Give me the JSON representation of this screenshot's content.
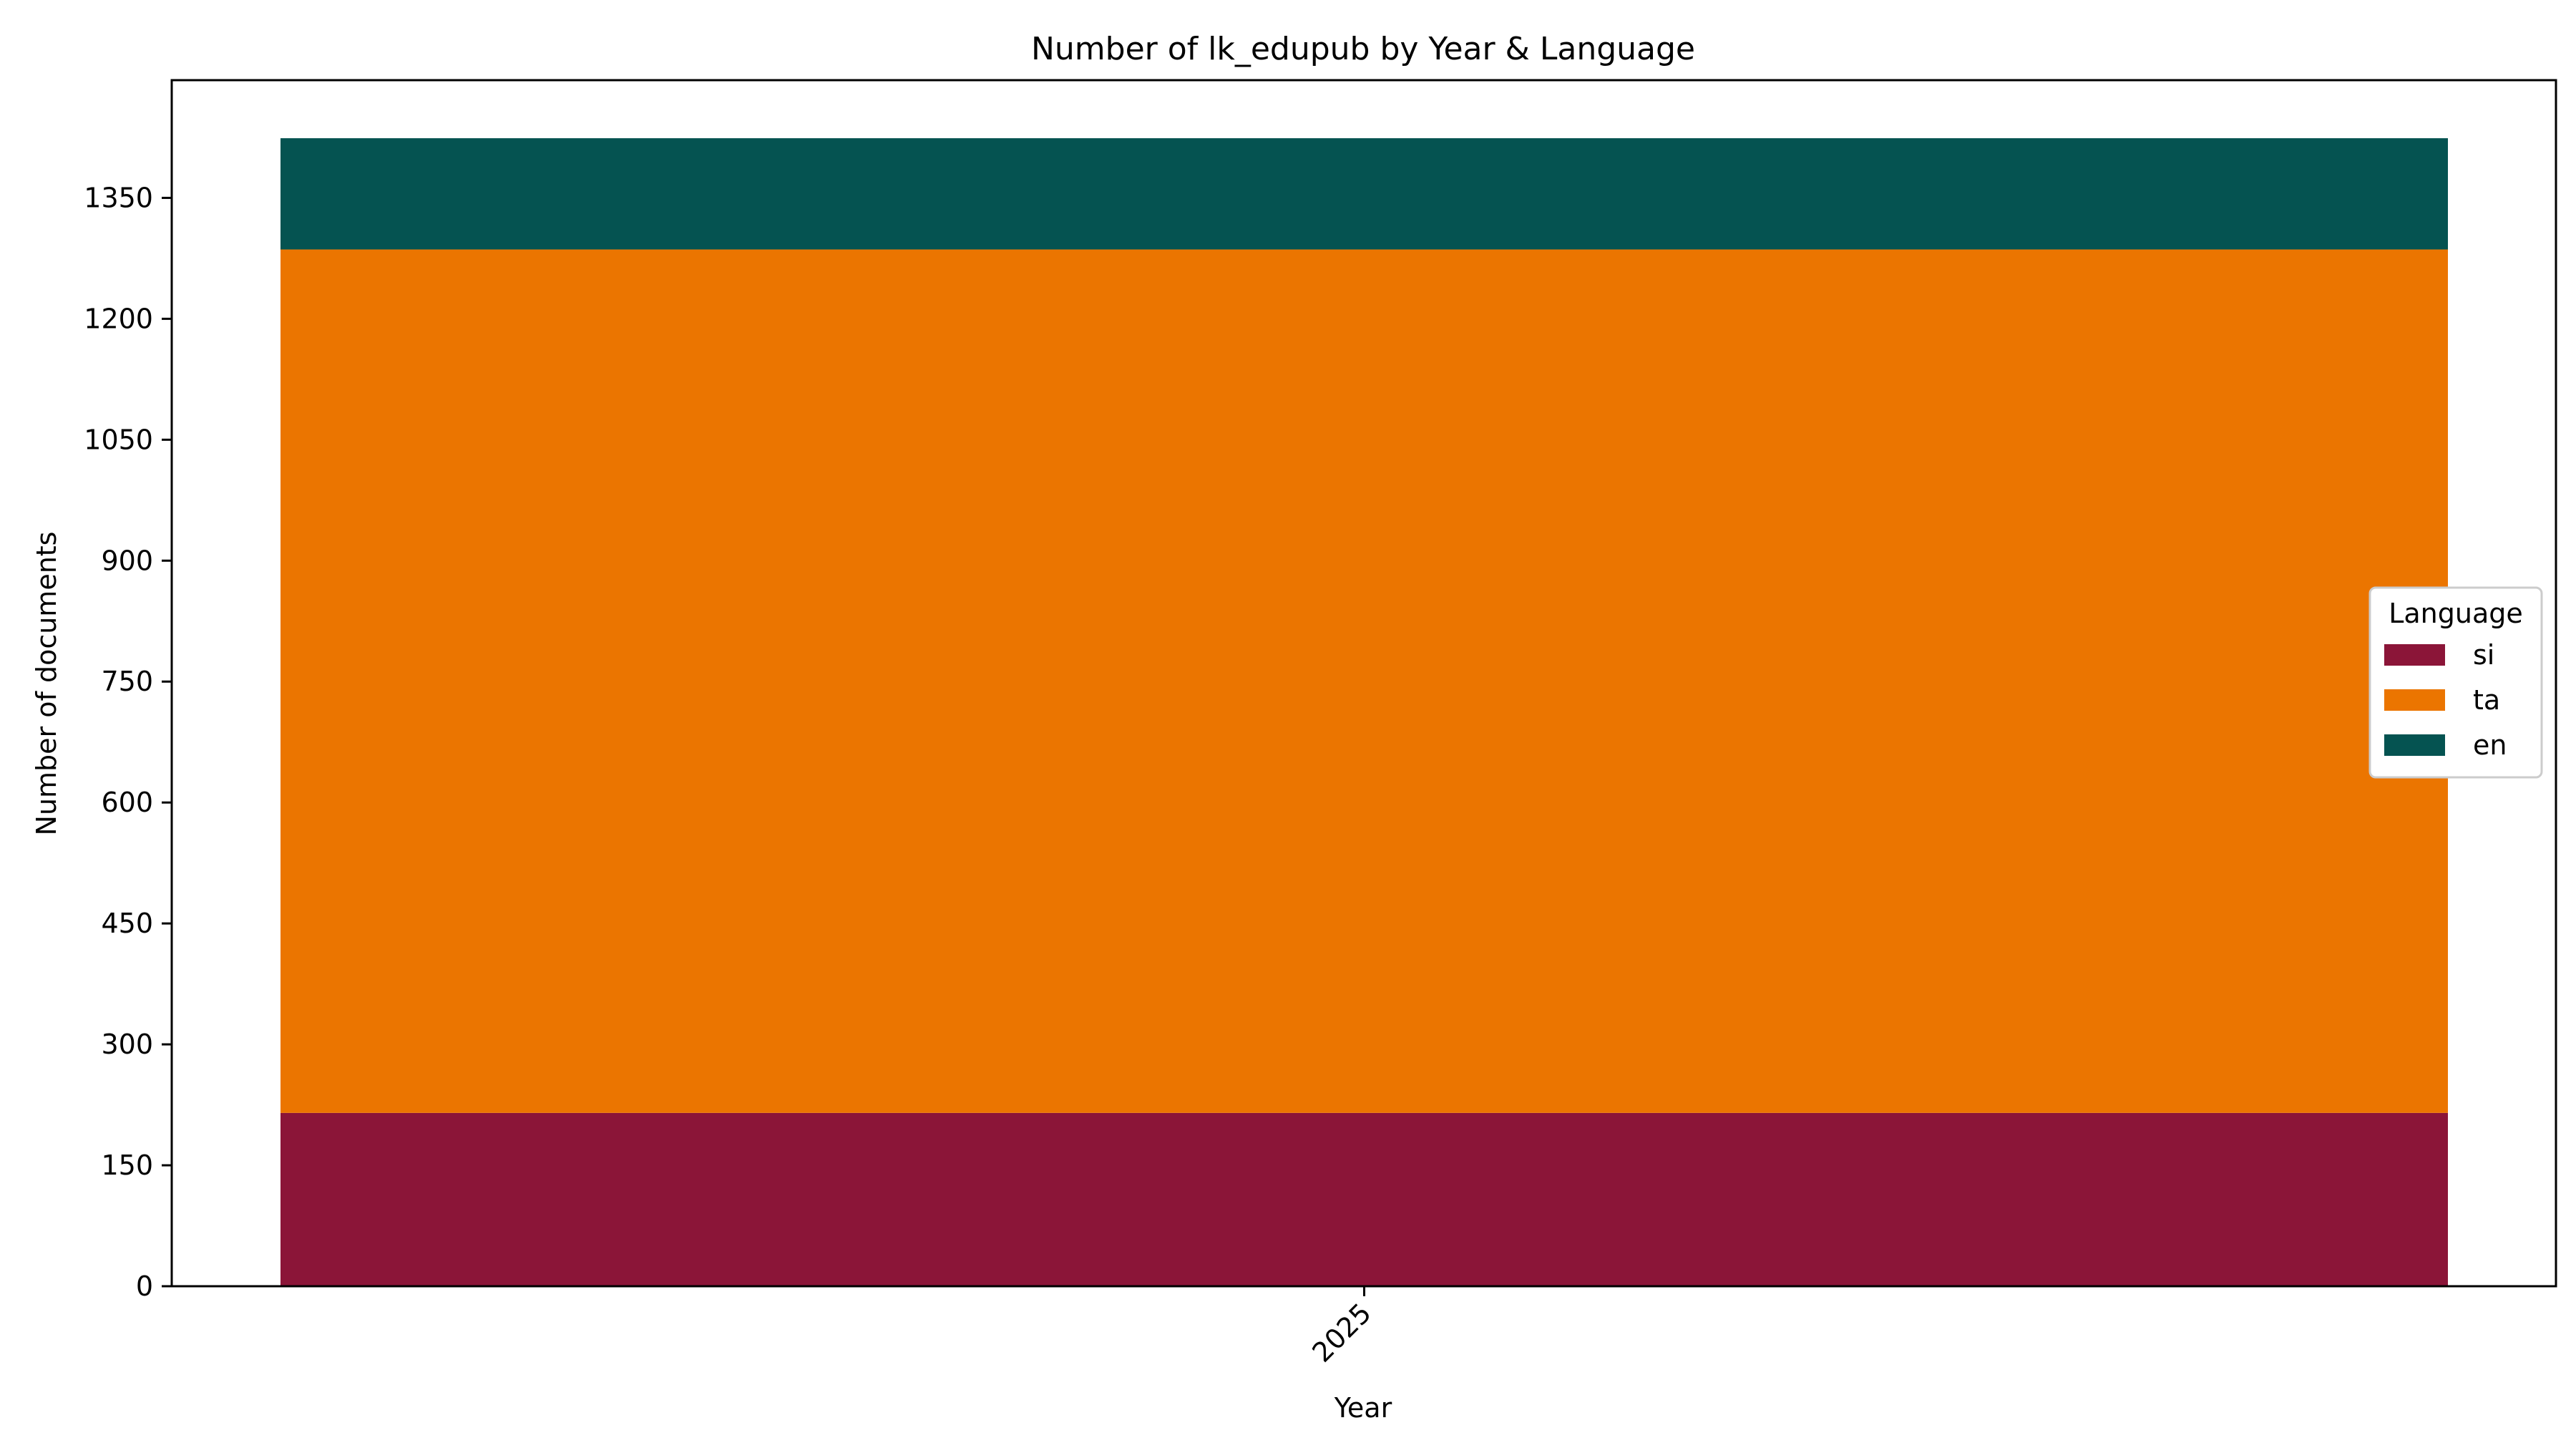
{
  "chart_data": {
    "type": "bar",
    "stacked": true,
    "title": "Number of lk_edupub by Year & Language",
    "xlabel": "Year",
    "ylabel": "Number of documents",
    "categories": [
      "2025"
    ],
    "series": [
      {
        "name": "si",
        "values": [
          215
        ],
        "color": "#8b1538"
      },
      {
        "name": "ta",
        "values": [
          1071
        ],
        "color": "#eb7500"
      },
      {
        "name": "en",
        "values": [
          138
        ],
        "color": "#055351"
      }
    ],
    "ylim": [
      0,
      1496
    ],
    "yticks": [
      0,
      150,
      300,
      450,
      600,
      750,
      900,
      1050,
      1200,
      1350
    ],
    "legend": {
      "title": "Language",
      "placement": "center-right"
    },
    "grid": false
  }
}
